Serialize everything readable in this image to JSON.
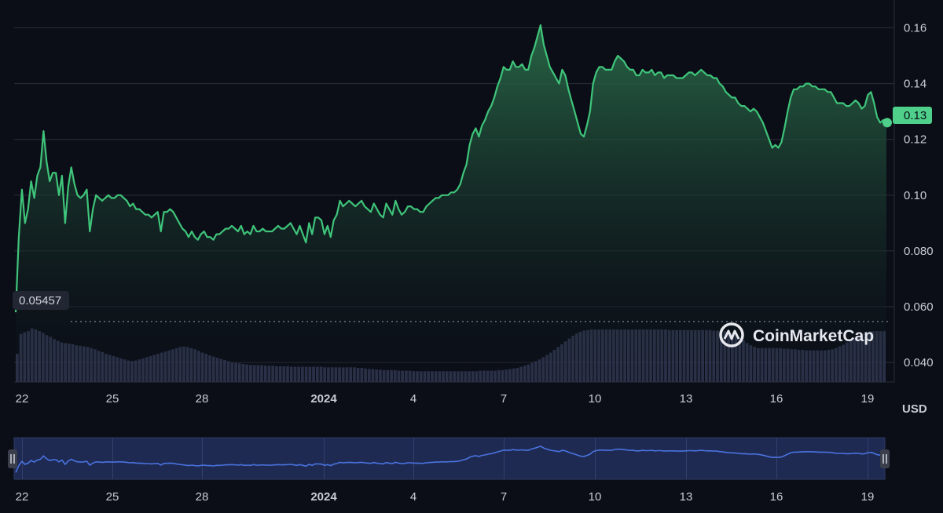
{
  "brand": {
    "name": "CoinMarketCap",
    "icon": "coinmarketcap-logo-icon"
  },
  "colors": {
    "background": "#0b0e17",
    "line": "#3fc47a",
    "area_top": "#2a6b49",
    "grid": "#2a2e3a",
    "volume": "#3a4160",
    "navigator_fill": "#1e2a52",
    "navigator_line": "#4a73e0",
    "current_badge": "#4fd08a"
  },
  "chart_data": {
    "type": "line",
    "currency_label": "USD",
    "x_ticks": [
      "22",
      "25",
      "28",
      "2024",
      "4",
      "7",
      "10",
      "13",
      "16",
      "19"
    ],
    "y_ticks": [
      "0.16",
      "0.14",
      "0.12",
      "0.10",
      "0.080",
      "0.060",
      "0.040"
    ],
    "ylim": [
      0.033,
      0.17
    ],
    "current_price_label": "0.13",
    "current_price": 0.126,
    "low_price_label": "0.05457",
    "low_price": 0.05457,
    "grid": true,
    "series": [
      {
        "values": [
          0.058,
          0.085,
          0.102,
          0.09,
          0.095,
          0.105,
          0.099,
          0.107,
          0.11,
          0.123,
          0.112,
          0.105,
          0.108,
          0.108,
          0.1,
          0.107,
          0.09,
          0.103,
          0.11,
          0.104,
          0.1,
          0.099,
          0.1,
          0.102,
          0.087,
          0.095,
          0.1,
          0.099,
          0.098,
          0.099,
          0.1,
          0.099,
          0.099,
          0.1,
          0.1,
          0.099,
          0.098,
          0.096,
          0.097,
          0.095,
          0.095,
          0.094,
          0.093,
          0.093,
          0.092,
          0.093,
          0.094,
          0.087,
          0.094,
          0.094,
          0.095,
          0.094,
          0.092,
          0.09,
          0.088,
          0.087,
          0.085,
          0.087,
          0.085,
          0.084,
          0.086,
          0.087,
          0.085,
          0.085,
          0.084,
          0.086,
          0.086,
          0.087,
          0.088,
          0.088,
          0.089,
          0.088,
          0.087,
          0.089,
          0.086,
          0.087,
          0.086,
          0.089,
          0.087,
          0.087,
          0.088,
          0.087,
          0.087,
          0.087,
          0.088,
          0.089,
          0.088,
          0.088,
          0.089,
          0.09,
          0.088,
          0.086,
          0.089,
          0.086,
          0.083,
          0.09,
          0.086,
          0.092,
          0.092,
          0.091,
          0.086,
          0.089,
          0.085,
          0.091,
          0.093,
          0.098,
          0.096,
          0.097,
          0.098,
          0.097,
          0.096,
          0.097,
          0.098,
          0.096,
          0.095,
          0.094,
          0.097,
          0.095,
          0.093,
          0.092,
          0.097,
          0.095,
          0.093,
          0.098,
          0.095,
          0.093,
          0.094,
          0.096,
          0.096,
          0.095,
          0.095,
          0.094,
          0.094,
          0.096,
          0.097,
          0.098,
          0.099,
          0.099,
          0.1,
          0.1,
          0.1,
          0.101,
          0.101,
          0.102,
          0.104,
          0.108,
          0.111,
          0.118,
          0.122,
          0.124,
          0.121,
          0.125,
          0.127,
          0.13,
          0.132,
          0.135,
          0.139,
          0.142,
          0.146,
          0.145,
          0.145,
          0.148,
          0.146,
          0.146,
          0.147,
          0.145,
          0.145,
          0.15,
          0.153,
          0.157,
          0.161,
          0.154,
          0.15,
          0.146,
          0.144,
          0.142,
          0.14,
          0.145,
          0.143,
          0.138,
          0.134,
          0.13,
          0.126,
          0.122,
          0.121,
          0.125,
          0.13,
          0.14,
          0.144,
          0.146,
          0.146,
          0.145,
          0.145,
          0.145,
          0.148,
          0.15,
          0.149,
          0.148,
          0.146,
          0.145,
          0.145,
          0.143,
          0.143,
          0.145,
          0.144,
          0.144,
          0.145,
          0.143,
          0.144,
          0.144,
          0.142,
          0.143,
          0.143,
          0.143,
          0.142,
          0.142,
          0.142,
          0.143,
          0.144,
          0.144,
          0.143,
          0.144,
          0.145,
          0.144,
          0.143,
          0.143,
          0.142,
          0.142,
          0.14,
          0.139,
          0.137,
          0.136,
          0.135,
          0.135,
          0.133,
          0.132,
          0.132,
          0.131,
          0.13,
          0.131,
          0.13,
          0.128,
          0.126,
          0.123,
          0.12,
          0.117,
          0.118,
          0.117,
          0.119,
          0.124,
          0.13,
          0.135,
          0.138,
          0.138,
          0.139,
          0.139,
          0.14,
          0.14,
          0.139,
          0.139,
          0.138,
          0.138,
          0.138,
          0.137,
          0.137,
          0.135,
          0.133,
          0.133,
          0.133,
          0.132,
          0.132,
          0.133,
          0.134,
          0.133,
          0.131,
          0.132,
          0.136,
          0.137,
          0.133,
          0.128,
          0.126,
          0.127,
          0.126
        ]
      }
    ],
    "volume": [
      0.5,
      0.85,
      0.88,
      0.9,
      0.95,
      0.93,
      0.9,
      0.87,
      0.83,
      0.8,
      0.76,
      0.73,
      0.7,
      0.69,
      0.68,
      0.67,
      0.65,
      0.64,
      0.63,
      0.62,
      0.6,
      0.58,
      0.55,
      0.53,
      0.5,
      0.48,
      0.46,
      0.44,
      0.42,
      0.4,
      0.38,
      0.37,
      0.38,
      0.4,
      0.42,
      0.44,
      0.46,
      0.48,
      0.5,
      0.52,
      0.54,
      0.56,
      0.58,
      0.6,
      0.62,
      0.63,
      0.62,
      0.6,
      0.58,
      0.55,
      0.52,
      0.5,
      0.47,
      0.45,
      0.43,
      0.41,
      0.39,
      0.37,
      0.35,
      0.34,
      0.33,
      0.32,
      0.31,
      0.3,
      0.3,
      0.3,
      0.3,
      0.29,
      0.29,
      0.29,
      0.28,
      0.28,
      0.28,
      0.28,
      0.27,
      0.27,
      0.27,
      0.27,
      0.27,
      0.27,
      0.27,
      0.27,
      0.27,
      0.26,
      0.26,
      0.26,
      0.26,
      0.26,
      0.26,
      0.26,
      0.26,
      0.26,
      0.25,
      0.25,
      0.24,
      0.23,
      0.23,
      0.22,
      0.22,
      0.21,
      0.21,
      0.21,
      0.21,
      0.2,
      0.2,
      0.2,
      0.2,
      0.19,
      0.19,
      0.19,
      0.19,
      0.19,
      0.19,
      0.19,
      0.19,
      0.19,
      0.19,
      0.19,
      0.19,
      0.19,
      0.19,
      0.19,
      0.19,
      0.19,
      0.19,
      0.2,
      0.2,
      0.2,
      0.2,
      0.2,
      0.21,
      0.21,
      0.22,
      0.23,
      0.24,
      0.25,
      0.27,
      0.29,
      0.31,
      0.34,
      0.37,
      0.4,
      0.44,
      0.48,
      0.52,
      0.57,
      0.62,
      0.67,
      0.72,
      0.77,
      0.82,
      0.86,
      0.89,
      0.91,
      0.92,
      0.93,
      0.93,
      0.93,
      0.93,
      0.93,
      0.93,
      0.93,
      0.93,
      0.93,
      0.93,
      0.93,
      0.93,
      0.93,
      0.93,
      0.93,
      0.93,
      0.93,
      0.93,
      0.93,
      0.93,
      0.93,
      0.92,
      0.92,
      0.92,
      0.92,
      0.92,
      0.92,
      0.92,
      0.92,
      0.92,
      0.92,
      0.92,
      0.92,
      0.91,
      0.91,
      0.91,
      0.9,
      0.88,
      0.86,
      0.83,
      0.79,
      0.74,
      0.69,
      0.65,
      0.62,
      0.6,
      0.6,
      0.6,
      0.6,
      0.6,
      0.6,
      0.6,
      0.59,
      0.59,
      0.58,
      0.58,
      0.57,
      0.57,
      0.56,
      0.56,
      0.56,
      0.56,
      0.56,
      0.56,
      0.57,
      0.58,
      0.6,
      0.63,
      0.66,
      0.7,
      0.74,
      0.78,
      0.82,
      0.86,
      0.88,
      0.9,
      0.9,
      0.9,
      0.9,
      0.9
    ]
  }
}
